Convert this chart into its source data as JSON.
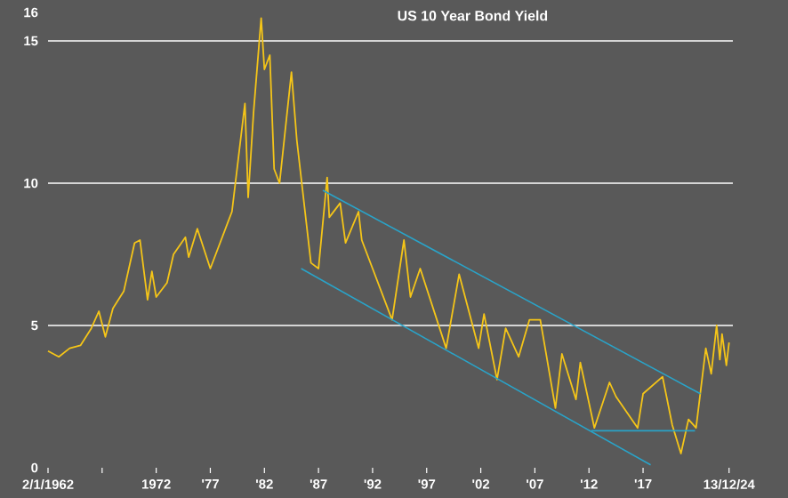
{
  "chart_data": {
    "type": "line",
    "title": "US 10 Year Bond Yield",
    "xlim": [
      1962,
      2025.3
    ],
    "ylim": [
      0,
      16
    ],
    "xticks": [
      {
        "value": 1962,
        "label": "2/1/1962"
      },
      {
        "value": 1967,
        "label": null
      },
      {
        "value": 1972,
        "label": "1972"
      },
      {
        "value": 1977,
        "label": "'77"
      },
      {
        "value": 1982,
        "label": "'82"
      },
      {
        "value": 1987,
        "label": "'87"
      },
      {
        "value": 1992,
        "label": "'92"
      },
      {
        "value": 1997,
        "label": "'97"
      },
      {
        "value": 2002,
        "label": "'02"
      },
      {
        "value": 2007,
        "label": "'07"
      },
      {
        "value": 2012,
        "label": "'12"
      },
      {
        "value": 2017,
        "label": "'17"
      },
      {
        "value": 2024.95,
        "label": "13/12/24"
      }
    ],
    "yticks": [
      0,
      5,
      10,
      15,
      16
    ],
    "grid": "y",
    "marker": "none",
    "line_style": "solid",
    "series": [
      {
        "color": "#f5c518",
        "x": [
          1962.0,
          1963.0,
          1964.0,
          1965.0,
          1966.0,
          1966.7,
          1967.3,
          1968.0,
          1969.0,
          1970.0,
          1970.5,
          1971.2,
          1971.6,
          1972.0,
          1973.0,
          1973.6,
          1974.7,
          1975.0,
          1975.8,
          1977.0,
          1978.0,
          1979.0,
          1980.2,
          1980.5,
          1981.0,
          1981.7,
          1982.0,
          1982.5,
          1982.9,
          1983.4,
          1984.5,
          1985.0,
          1986.3,
          1987.0,
          1987.8,
          1988.0,
          1989.0,
          1989.5,
          1990.7,
          1991.0,
          1992.0,
          1993.8,
          1994.9,
          1995.5,
          1996.4,
          1998.8,
          2000.0,
          2001.8,
          2002.3,
          2003.5,
          2004.3,
          2005.5,
          2006.5,
          2007.5,
          2008.9,
          2009.5,
          2010.8,
          2011.2,
          2012.5,
          2013.9,
          2014.5,
          2016.5,
          2017.0,
          2018.8,
          2019.7,
          2020.5,
          2021.2,
          2021.9,
          2022.8,
          2023.3,
          2023.8,
          2024.1,
          2024.3,
          2024.7,
          2024.95
        ],
        "values": [
          4.1,
          3.9,
          4.2,
          4.3,
          4.9,
          5.5,
          4.6,
          5.6,
          6.2,
          7.9,
          8.0,
          5.9,
          6.9,
          6.0,
          6.5,
          7.5,
          8.1,
          7.4,
          8.4,
          7.0,
          8.0,
          9.0,
          12.8,
          9.5,
          12.5,
          15.8,
          14.0,
          14.5,
          10.5,
          10.0,
          13.9,
          11.5,
          7.2,
          7.0,
          10.2,
          8.8,
          9.3,
          7.9,
          9.0,
          8.0,
          7.0,
          5.2,
          8.0,
          6.0,
          7.0,
          4.2,
          6.8,
          4.2,
          5.4,
          3.1,
          4.9,
          3.9,
          5.2,
          5.2,
          2.1,
          4.0,
          2.4,
          3.7,
          1.4,
          3.0,
          2.5,
          1.4,
          2.6,
          3.2,
          1.5,
          0.5,
          1.7,
          1.4,
          4.2,
          3.3,
          5.0,
          3.8,
          4.7,
          3.6,
          4.4
        ]
      },
      {
        "type": "line",
        "color": "#2aa3c8",
        "x": [
          1987.4,
          2022.3
        ],
        "values": [
          9.75,
          2.6
        ]
      },
      {
        "type": "line",
        "color": "#2aa3c8",
        "x": [
          1985.4,
          2017.7
        ],
        "values": [
          7.0,
          0.1
        ]
      },
      {
        "type": "line",
        "color": "#2aa3c8",
        "x": [
          2012.2,
          2021.8
        ],
        "values": [
          1.3,
          1.3
        ]
      }
    ]
  }
}
